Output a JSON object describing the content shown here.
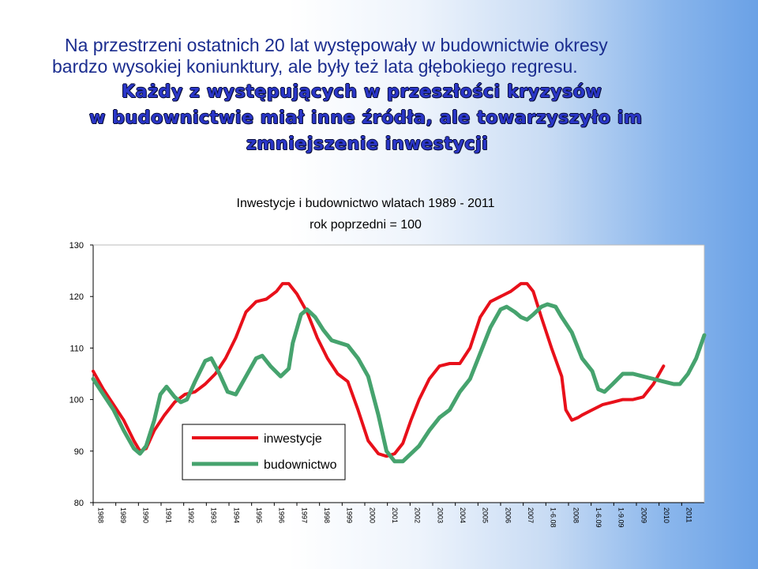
{
  "heading": {
    "line1": "Na przestrzeni ostatnich 20 lat występowały w budownictwie okresy",
    "line2": "bardzo wysokiej koniunktury, ale były też lata głębokiego regresu.",
    "line3": "Każdy z występujących w przeszłości  kryzysów",
    "line4": "w budownictwie miał inne źródła, ale towarzyszyło im",
    "line5": "zmniejszenie inwestycji"
  },
  "chart_data": {
    "type": "line",
    "title": "Inwestycje i budownictwo wlatach 1989 - 2011",
    "subtitle": "rok poprzedni = 100",
    "categories": [
      "1988",
      "1989",
      "1990",
      "1991",
      "1992",
      "1993",
      "1994",
      "1995",
      "1996",
      "1997",
      "1998",
      "1999",
      "2000",
      "2001",
      "2002",
      "2003",
      "2004",
      "2005",
      "2006",
      "2007",
      "1-6.08",
      "2008",
      "1-6.09",
      "1-9.09",
      "2009",
      "2010",
      "2011"
    ],
    "ylim": [
      80,
      130
    ],
    "yticks": [
      "80",
      "90",
      "100",
      "110",
      "120",
      "130"
    ],
    "series": [
      {
        "name": "inwestycje",
        "color": "#e8101a",
        "points": [
          [
            0,
            105.5
          ],
          [
            0.5,
            102
          ],
          [
            1,
            99
          ],
          [
            1.5,
            96
          ],
          [
            2,
            92
          ],
          [
            2.3,
            90
          ],
          [
            2.6,
            90.5
          ],
          [
            3,
            94
          ],
          [
            3.5,
            97
          ],
          [
            4,
            99.5
          ],
          [
            4.5,
            101
          ],
          [
            5,
            101.5
          ],
          [
            5.5,
            103
          ],
          [
            6,
            105
          ],
          [
            6.5,
            108
          ],
          [
            7,
            112
          ],
          [
            7.5,
            117
          ],
          [
            8,
            119
          ],
          [
            8.5,
            119.5
          ],
          [
            9,
            121
          ],
          [
            9.3,
            122.5
          ],
          [
            9.6,
            122.5
          ],
          [
            10,
            120.5
          ],
          [
            10.5,
            117
          ],
          [
            11,
            112
          ],
          [
            11.5,
            108
          ],
          [
            12,
            105
          ],
          [
            12.5,
            103.5
          ],
          [
            13,
            98
          ],
          [
            13.5,
            92
          ],
          [
            14,
            89.5
          ],
          [
            14.4,
            89
          ],
          [
            14.8,
            89.5
          ],
          [
            15.2,
            91.5
          ],
          [
            15.6,
            96
          ],
          [
            16,
            100
          ],
          [
            16.5,
            104
          ],
          [
            17,
            106.5
          ],
          [
            17.5,
            107
          ],
          [
            18,
            107
          ],
          [
            18.5,
            110
          ],
          [
            19,
            116
          ],
          [
            19.5,
            119
          ],
          [
            20,
            120
          ],
          [
            20.5,
            121
          ],
          [
            21,
            122.5
          ],
          [
            21.3,
            122.5
          ],
          [
            21.6,
            121
          ],
          [
            22,
            116
          ],
          [
            22.5,
            110
          ],
          [
            23,
            104.5
          ],
          [
            23.2,
            98
          ],
          [
            23.5,
            96
          ],
          [
            23.8,
            96.5
          ],
          [
            24,
            97
          ],
          [
            24.5,
            98
          ],
          [
            25,
            99
          ],
          [
            25.5,
            99.5
          ],
          [
            26,
            100
          ],
          [
            26.5,
            100
          ],
          [
            27,
            100.5
          ],
          [
            27.5,
            103
          ],
          [
            28,
            106.5
          ]
        ]
      },
      {
        "name": "budownictwo",
        "color": "#46a36e",
        "points": [
          [
            0,
            104
          ],
          [
            0.5,
            101
          ],
          [
            1,
            98
          ],
          [
            1.5,
            94
          ],
          [
            2,
            90.5
          ],
          [
            2.3,
            89.5
          ],
          [
            2.6,
            91
          ],
          [
            3,
            96
          ],
          [
            3.3,
            101
          ],
          [
            3.6,
            102.5
          ],
          [
            4,
            100.5
          ],
          [
            4.3,
            99.5
          ],
          [
            4.6,
            100
          ],
          [
            5,
            103.5
          ],
          [
            5.5,
            107.5
          ],
          [
            5.8,
            108
          ],
          [
            6.2,
            105
          ],
          [
            6.6,
            101.5
          ],
          [
            7,
            101
          ],
          [
            7.5,
            104.5
          ],
          [
            8,
            108
          ],
          [
            8.3,
            108.5
          ],
          [
            8.7,
            106.5
          ],
          [
            9.2,
            104.5
          ],
          [
            9.6,
            106
          ],
          [
            9.8,
            111
          ],
          [
            10.2,
            116.5
          ],
          [
            10.5,
            117.5
          ],
          [
            10.9,
            116
          ],
          [
            11.3,
            113.5
          ],
          [
            11.7,
            111.5
          ],
          [
            12.1,
            111
          ],
          [
            12.5,
            110.5
          ],
          [
            13,
            108
          ],
          [
            13.5,
            104.5
          ],
          [
            14,
            97
          ],
          [
            14.4,
            90
          ],
          [
            14.8,
            88
          ],
          [
            15.2,
            88
          ],
          [
            15.6,
            89.5
          ],
          [
            16,
            91
          ],
          [
            16.5,
            94
          ],
          [
            17,
            96.5
          ],
          [
            17.5,
            98
          ],
          [
            18,
            101.5
          ],
          [
            18.5,
            104
          ],
          [
            19,
            109
          ],
          [
            19.5,
            114
          ],
          [
            20,
            117.5
          ],
          [
            20.3,
            118
          ],
          [
            20.7,
            117
          ],
          [
            21,
            116
          ],
          [
            21.3,
            115.5
          ],
          [
            21.6,
            116.5
          ],
          [
            22,
            118
          ],
          [
            22.3,
            118.5
          ],
          [
            22.7,
            118
          ],
          [
            23,
            116
          ],
          [
            23.5,
            113
          ],
          [
            24,
            108
          ],
          [
            24.5,
            105.5
          ],
          [
            24.8,
            102
          ],
          [
            25.1,
            101.5
          ],
          [
            25.5,
            103
          ],
          [
            26,
            105
          ],
          [
            26.5,
            105
          ],
          [
            27,
            104.5
          ],
          [
            27.5,
            104
          ],
          [
            28,
            103.5
          ],
          [
            28.5,
            103
          ],
          [
            28.8,
            103
          ],
          [
            29.2,
            105
          ],
          [
            29.6,
            108
          ],
          [
            30,
            112.5
          ]
        ]
      }
    ],
    "legend": {
      "position": "bottom-left",
      "entries": [
        "inwestycje",
        "budownictwo"
      ]
    },
    "grid": false
  }
}
